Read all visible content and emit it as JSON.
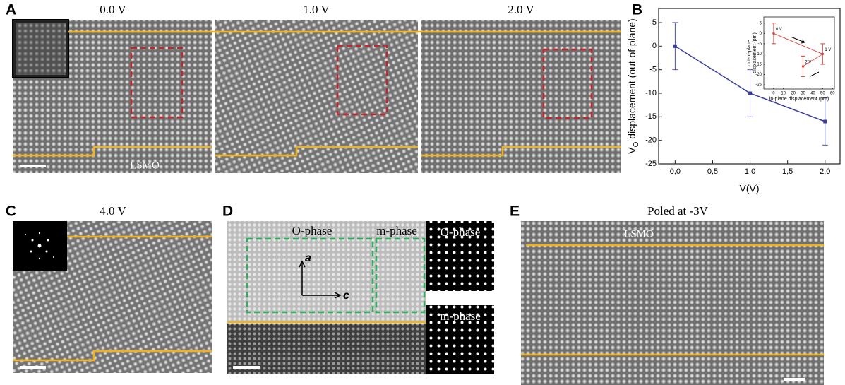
{
  "chart_data": [
    {
      "type": "line",
      "x": [
        0,
        1,
        2
      ],
      "values": [
        0,
        -10,
        -16
      ],
      "errors": [
        5,
        5,
        5
      ],
      "color": "#3a3f9f",
      "xlim": [
        -0.22,
        2.2
      ],
      "xticks": [
        {
          "value": 0,
          "label": "0,0"
        },
        {
          "value": 0.5,
          "label": "0,5"
        },
        {
          "value": 1,
          "label": "1,0"
        },
        {
          "value": 1.5,
          "label": "1,5"
        },
        {
          "value": 2,
          "label": "2,0"
        }
      ],
      "ylim": [
        -25,
        8
      ],
      "yticks": [
        5,
        0,
        -5,
        -10,
        -15,
        -20,
        -25
      ],
      "xlabel": "V(V)",
      "ylabel": [
        "V",
        "O",
        " displacement (out-of-plane)"
      ]
    },
    {
      "type": "line",
      "x": [
        0,
        50,
        30
      ],
      "values": [
        0,
        -10,
        -16
      ],
      "errors": [
        5,
        5,
        5
      ],
      "color": "#d9403a",
      "xlim": [
        -10,
        62
      ],
      "xticks": [
        0,
        10,
        20,
        30,
        40,
        50,
        60
      ],
      "ylim": [
        -27,
        8
      ],
      "yticks": [
        5,
        0,
        -5,
        -10,
        -15,
        -20,
        -25
      ],
      "point_labels": [
        "0 V",
        "1 V",
        "2 V"
      ],
      "xlabel": "in-plane displacement (pm)",
      "ylabel": [
        "out-of-plane",
        "displacement (pm)"
      ]
    }
  ],
  "panels": {
    "A": {
      "letter": "A",
      "labels": [
        "0.0 V",
        "1.0 V",
        "2.0 V"
      ],
      "substrate": "LSMO"
    },
    "B": {
      "letter": "B"
    },
    "C": {
      "letter": "C",
      "label": "4.0 V"
    },
    "D": {
      "letter": "D",
      "phases": [
        "O-phase",
        "m-phase"
      ],
      "axes": [
        "a",
        "c"
      ],
      "insets": [
        "O-phase",
        "m-phase"
      ]
    },
    "E": {
      "letter": "E",
      "label": "Poled at -3V",
      "substrate": "LSMO"
    }
  }
}
